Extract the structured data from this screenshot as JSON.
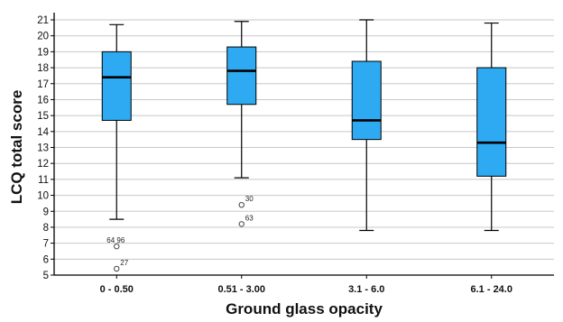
{
  "chart_data": {
    "type": "box",
    "xlabel": "Ground glass opacity",
    "ylabel": "LCQ total score",
    "ylim": [
      5,
      21
    ],
    "yticks": [
      5,
      6,
      7,
      8,
      9,
      10,
      11,
      12,
      13,
      14,
      15,
      16,
      17,
      18,
      19,
      20,
      21
    ],
    "grid": "horizontal",
    "box_color": "#2eaaf2",
    "categories": [
      "0 - 0.50",
      "0.51 - 3.00",
      "3.1 - 6.0",
      "6.1 - 24.0"
    ],
    "boxes": [
      {
        "whisker_low": 8.5,
        "q1": 14.7,
        "median": 17.4,
        "q3": 19.0,
        "whisker_high": 20.7,
        "outliers": [
          {
            "value": 6.8,
            "label": "64, 96"
          },
          {
            "value": 5.4,
            "label": "27"
          }
        ]
      },
      {
        "whisker_low": 11.1,
        "q1": 15.7,
        "median": 17.8,
        "q3": 19.3,
        "whisker_high": 20.9,
        "outliers": [
          {
            "value": 9.4,
            "label": "30"
          },
          {
            "value": 8.2,
            "label": "63"
          }
        ]
      },
      {
        "whisker_low": 7.8,
        "q1": 13.5,
        "median": 14.7,
        "q3": 18.4,
        "whisker_high": 21.0,
        "outliers": []
      },
      {
        "whisker_low": 7.8,
        "q1": 11.2,
        "median": 13.3,
        "q3": 18.0,
        "whisker_high": 20.8,
        "outliers": []
      }
    ]
  }
}
